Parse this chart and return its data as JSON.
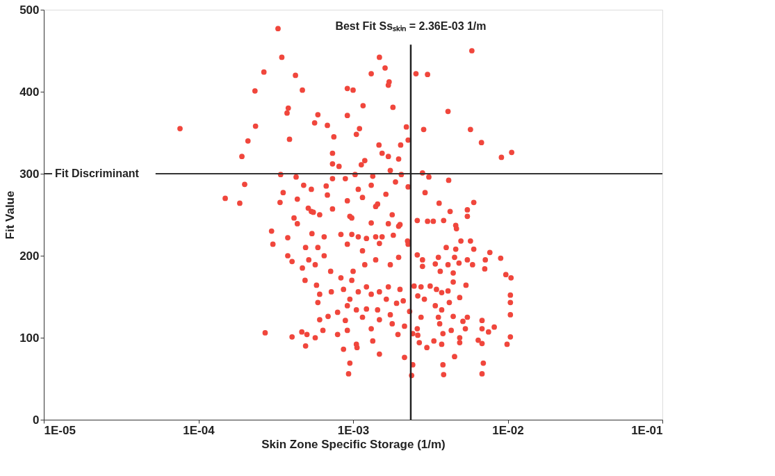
{
  "chart_data": {
    "type": "scatter",
    "xlabel": "Skin Zone Specific Storage (1/m)",
    "ylabel": "Fit Value",
    "log": "x",
    "grid": false,
    "marker": "circle",
    "color": "#f0463c",
    "xlim": [
      1e-05,
      0.1
    ],
    "ylim": [
      0,
      500
    ],
    "xticks": [
      {
        "value": 1e-05,
        "label": "1E-05"
      },
      {
        "value": 0.0001,
        "label": "1E-04"
      },
      {
        "value": 0.001,
        "label": "1E-03"
      },
      {
        "value": 0.01,
        "label": "1E-02"
      },
      {
        "value": 0.1,
        "label": "1E-01"
      }
    ],
    "yticks": [
      0,
      100,
      200,
      300,
      400,
      500
    ],
    "ref_lines": [
      {
        "axis": "y",
        "value": 300,
        "label": "Fit Discriminant",
        "color": "#333333"
      },
      {
        "axis": "x",
        "value": 0.00236,
        "label": "Best Fit Ssₛₖᵢₙ = 2.36E-03 1/m",
        "color": "#222222"
      }
    ],
    "x": [
      7.6e-05,
      0.000149,
      0.000185,
      0.000191,
      0.000199,
      0.000209,
      0.000234,
      0.000232,
      0.000265,
      0.000346,
      0.000327,
      0.000424,
      0.00047,
      0.000381,
      0.000374,
      0.000592,
      0.000564,
      0.000682,
      0.000388,
      0.00034,
      0.000428,
      0.000479,
      0.000537,
      0.000353,
      0.000337,
      0.000436,
      0.000415,
      0.000436,
      0.000537,
      0.000513,
      0.000608,
      0.000297,
      0.000378,
      0.000736,
      0.00027,
      0.00148,
      0.00161,
      0.00131,
      0.00255,
      0.00303,
      0.00586,
      0.000918,
      0.001,
      0.00171,
      0.00169,
      0.00116,
      0.00181,
      0.000918,
      0.00411,
      0.0011,
      0.00105,
      0.00221,
      0.00286,
      0.00574,
      0.00676,
      0.000751,
      0.00147,
      0.00203,
      0.00227,
      0.00154,
      0.00169,
      0.00197,
      0.00119,
      0.00113,
      0.0091,
      0.0106,
      0.000736,
      0.000811,
      0.00174,
      0.00281,
      0.00309,
      0.00415,
      0.00103,
      0.00134,
      0.00205,
      0.000736,
      0.000891,
      0.00067,
      0.00131,
      0.00188,
      0.00227,
      0.00292,
      0.00108,
      0.00163,
      0.000682,
      0.000918,
      0.00115,
      0.00144,
      0.0036,
      0.00603,
      0.00424,
      0.00548,
      0.00548,
      0.000736,
      0.000953,
      0.00131,
      0.00179,
      0.0026,
      0.00303,
      0.0033,
      0.00385,
      0.00461,
      0.00466,
      0.00169,
      0.00201,
      0.00065,
      0.000834,
      0.00108,
      0.0014,
      0.00182,
      0.00225,
      0.00498,
      0.00574,
      0.000553,
      0.000981,
      0.0014,
      0.00197,
      0.000303,
      0.000542,
      0.000981,
      0.00122,
      0.00154,
      0.000918,
      0.00115,
      0.00148,
      0.000378,
      0.000403,
      0.000493,
      0.000592,
      0.00065,
      0.00047,
      0.000517,
      0.000569,
      0.000716,
      0.000834,
      0.001,
      0.00119,
      0.0014,
      0.00174,
      0.00197,
      0.000489,
      0.00058,
      0.000608,
      0.000723,
      0.000867,
      0.000981,
      0.00122,
      0.00131,
      0.00148,
      0.00169,
      0.00164,
      0.000953,
      0.00108,
      0.00201,
      0.00211,
      0.00191,
      0.000592,
      0.000918,
      0.00105,
      0.00122,
      0.00144,
      0.000608,
      0.000689,
      0.000794,
      0.000891,
      0.00115,
      0.00131,
      0.00148,
      0.00174,
      0.00179,
      0.000918,
      0.00215,
      0.000638,
      0.000403,
      0.000466,
      0.000503,
      0.000569,
      0.000493,
      0.000794,
      0.00105,
      0.00134,
      0.00195,
      0.000867,
      0.00106,
      0.00148,
      0.00215,
      0.000953,
      0.000935,
      0.00243,
      0.00239,
      0.00275,
      0.00232,
      0.00243,
      0.00227,
      0.00603,
      0.004,
      0.00461,
      0.00766,
      0.009,
      0.00716,
      0.0071,
      0.00356,
      0.0034,
      0.00411,
      0.00453,
      0.00484,
      0.00548,
      0.00592,
      0.0026,
      0.00281,
      0.00281,
      0.00366,
      0.00444,
      0.00444,
      0.00972,
      0.0105,
      0.00537,
      0.00248,
      0.00275,
      0.00315,
      0.00346,
      0.00374,
      0.00411,
      0.00489,
      0.00419,
      0.00262,
      0.00289,
      0.0034,
      0.0104,
      0.0104,
      0.0104,
      0.00374,
      0.00356,
      0.00363,
      0.00444,
      0.00548,
      0.00513,
      0.00532,
      0.00682,
      0.00682,
      0.00751,
      0.00818,
      0.0026,
      0.00262,
      0.00381,
      0.00431,
      0.00268,
      0.003,
      0.00333,
      0.00374,
      0.00489,
      0.00489,
      0.00644,
      0.00682,
      0.0104,
      0.0099,
      0.00453,
      0.00381,
      0.00385,
      0.00695,
      0.00682
    ],
    "values": [
      355,
      270,
      264,
      321,
      287,
      340,
      358,
      401,
      424,
      442,
      477,
      420,
      402,
      380,
      374,
      372,
      362,
      359,
      342,
      299,
      296,
      286,
      281,
      277,
      265,
      269,
      246,
      239,
      254,
      258,
      250,
      230,
      222,
      325,
      106,
      442,
      429,
      422,
      422,
      421,
      450,
      404,
      402,
      412,
      408,
      383,
      381,
      371,
      376,
      355,
      348,
      357,
      354,
      354,
      338,
      345,
      335,
      335,
      341,
      325,
      321,
      318,
      316,
      311,
      320,
      326,
      312,
      309,
      304,
      301,
      296,
      292,
      299,
      297,
      299,
      294,
      294,
      285,
      286,
      290,
      284,
      277,
      281,
      275,
      274,
      267,
      271,
      263,
      264,
      265,
      254,
      256,
      248,
      257,
      248,
      240,
      250,
      243,
      242,
      242,
      243,
      237,
      233,
      239,
      238,
      223,
      226,
      223,
      223,
      225,
      218,
      218,
      218,
      253,
      246,
      260,
      236,
      214,
      227,
      226,
      221,
      223,
      214,
      206,
      215,
      200,
      193,
      210,
      210,
      200,
      185,
      195,
      189,
      181,
      173,
      181,
      189,
      195,
      189,
      198,
      170,
      164,
      153,
      156,
      159,
      170,
      162,
      153,
      156,
      162,
      147,
      147,
      156,
      159,
      145,
      142,
      143,
      139,
      134,
      135,
      134,
      122,
      126,
      131,
      121,
      125,
      111,
      122,
      128,
      117,
      109,
      114,
      109,
      101,
      107,
      104,
      100,
      90,
      104,
      92,
      96,
      104,
      86,
      88,
      80,
      76,
      69,
      56,
      67,
      54,
      125,
      132,
      105,
      214,
      208,
      210,
      208,
      204,
      197,
      195,
      184,
      198,
      190,
      189,
      198,
      191,
      195,
      189,
      201,
      195,
      187,
      181,
      179,
      168,
      177,
      173,
      164,
      163,
      162,
      163,
      159,
      155,
      157,
      149,
      143,
      151,
      147,
      139,
      152,
      143,
      128,
      134,
      125,
      117,
      126,
      125,
      120,
      111,
      121,
      111,
      107,
      113,
      111,
      103,
      105,
      109,
      94,
      88,
      96,
      92,
      100,
      94,
      97,
      93,
      101,
      92,
      77,
      67,
      55,
      69,
      56
    ]
  }
}
